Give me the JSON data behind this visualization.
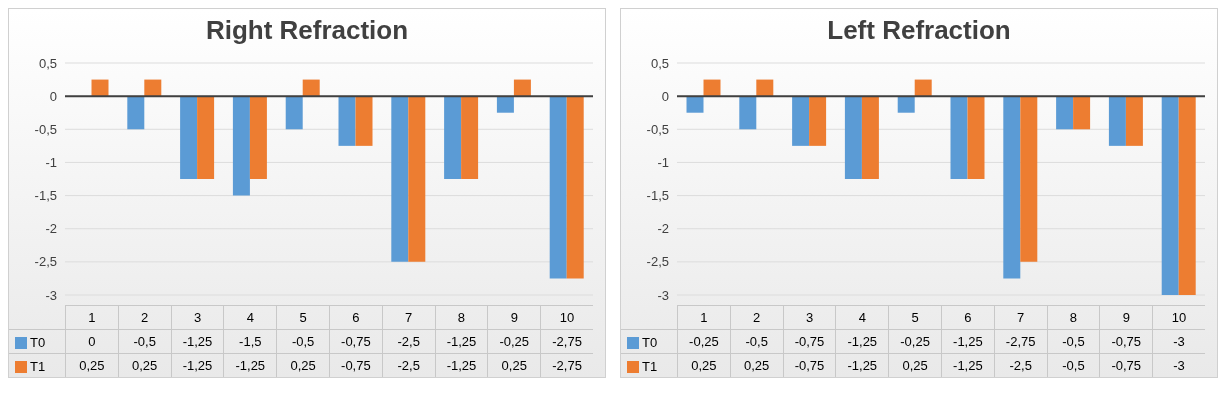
{
  "chart_data": [
    {
      "type": "bar",
      "title": "Right  Refraction",
      "categories": [
        "1",
        "2",
        "3",
        "4",
        "5",
        "6",
        "7",
        "8",
        "9",
        "10"
      ],
      "series": [
        {
          "name": "T0",
          "color": "#5b9bd5",
          "values": [
            0,
            -0.5,
            -1.25,
            -1.5,
            -0.5,
            -0.75,
            -2.5,
            -1.25,
            -0.25,
            -2.75
          ],
          "value_labels": [
            "0",
            "-0,5",
            "-1,25",
            "-1,5",
            "-0,5",
            "-0,75",
            "-2,5",
            "-1,25",
            "-0,25",
            "-2,75"
          ]
        },
        {
          "name": "T1",
          "color": "#ed7d31",
          "values": [
            0.25,
            0.25,
            -1.25,
            -1.25,
            0.25,
            -0.75,
            -2.5,
            -1.25,
            0.25,
            -2.75
          ],
          "value_labels": [
            "0,25",
            "0,25",
            "-1,25",
            "-1,25",
            "0,25",
            "-0,75",
            "-2,5",
            "-1,25",
            "0,25",
            "-2,75"
          ]
        }
      ],
      "ylim": [
        -3,
        0.5
      ],
      "yticks": [
        {
          "value": -3,
          "label": "-3"
        },
        {
          "value": -2.5,
          "label": "-2,5"
        },
        {
          "value": -2,
          "label": "-2"
        },
        {
          "value": -1.5,
          "label": "-1,5"
        },
        {
          "value": -1,
          "label": "-1"
        },
        {
          "value": -0.5,
          "label": "-0,5"
        },
        {
          "value": 0,
          "label": "0"
        },
        {
          "value": 0.5,
          "label": "0,5"
        }
      ],
      "grid": "y",
      "legend": "bottom"
    },
    {
      "type": "bar",
      "title": "Left  Refraction",
      "categories": [
        "1",
        "2",
        "3",
        "4",
        "5",
        "6",
        "7",
        "8",
        "9",
        "10"
      ],
      "series": [
        {
          "name": "T0",
          "color": "#5b9bd5",
          "values": [
            -0.25,
            -0.5,
            -0.75,
            -1.25,
            -0.25,
            -1.25,
            -2.75,
            -0.5,
            -0.75,
            -3
          ],
          "value_labels": [
            "-0,25",
            "-0,5",
            "-0,75",
            "-1,25",
            "-0,25",
            "-1,25",
            "-2,75",
            "-0,5",
            "-0,75",
            "-3"
          ]
        },
        {
          "name": "T1",
          "color": "#ed7d31",
          "values": [
            0.25,
            0.25,
            -0.75,
            -1.25,
            0.25,
            -1.25,
            -2.5,
            -0.5,
            -0.75,
            -3
          ],
          "value_labels": [
            "0,25",
            "0,25",
            "-0,75",
            "-1,25",
            "0,25",
            "-1,25",
            "-2,5",
            "-0,5",
            "-0,75",
            "-3"
          ]
        }
      ],
      "ylim": [
        -3,
        0.5
      ],
      "yticks": [
        {
          "value": -3,
          "label": "-3"
        },
        {
          "value": -2.5,
          "label": "-2,5"
        },
        {
          "value": -2,
          "label": "-2"
        },
        {
          "value": -1.5,
          "label": "-1,5"
        },
        {
          "value": -1,
          "label": "-1"
        },
        {
          "value": -0.5,
          "label": "-0,5"
        },
        {
          "value": 0,
          "label": "0"
        },
        {
          "value": 0.5,
          "label": "0,5"
        }
      ],
      "grid": "y",
      "legend": "bottom"
    }
  ]
}
